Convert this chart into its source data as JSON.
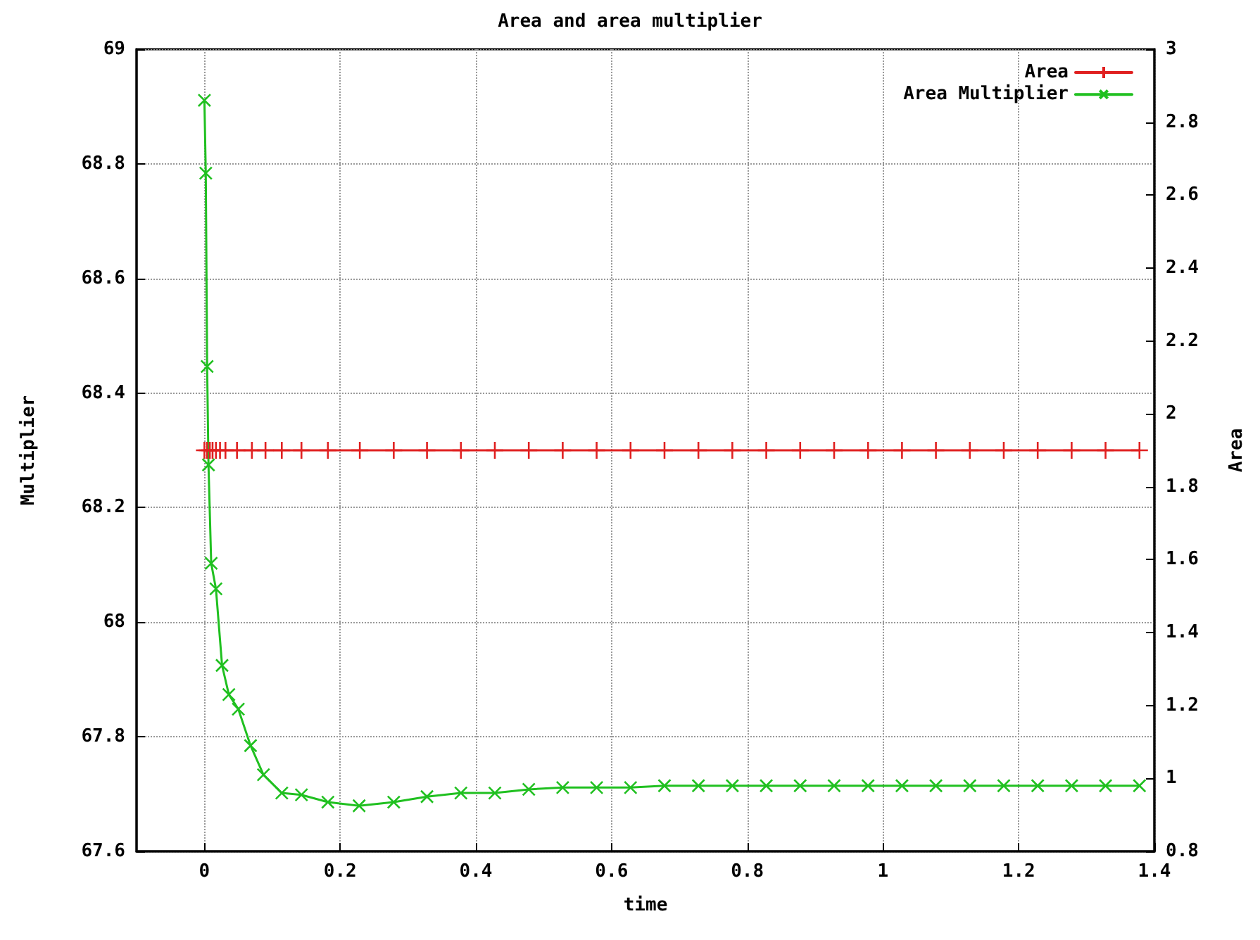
{
  "chart_data": {
    "type": "line",
    "title": "Area and area multiplier",
    "xlabel": "time",
    "ylabel": "Multiplier",
    "y2label": "Area",
    "xlim": [
      -0.1,
      1.4
    ],
    "xticks": [
      0,
      0.2,
      0.4,
      0.6,
      0.8,
      1,
      1.2,
      1.4
    ],
    "ylim": [
      67.6,
      69
    ],
    "yticks": [
      67.6,
      67.8,
      68,
      68.2,
      68.4,
      68.6,
      68.8,
      69
    ],
    "y2lim": [
      0.8,
      3
    ],
    "y2ticks": [
      0.8,
      1,
      1.2,
      1.4,
      1.6,
      1.8,
      2,
      2.2,
      2.4,
      2.6,
      2.8,
      3
    ],
    "grid": true,
    "legend": "top right",
    "marker": "cross",
    "line_style": "solid",
    "series": [
      {
        "name": "Area",
        "color": "#e02020",
        "axis": "y",
        "x": [
          0,
          0.004,
          0.008,
          0.012,
          0.017,
          0.023,
          0.031,
          0.048,
          0.07,
          0.09,
          0.114,
          0.143,
          0.182,
          0.229,
          0.279,
          0.328,
          0.378,
          0.428,
          0.478,
          0.528,
          0.578,
          0.628,
          0.678,
          0.728,
          0.778,
          0.828,
          0.878,
          0.928,
          0.978,
          1.028,
          1.078,
          1.128,
          1.178,
          1.228,
          1.278,
          1.328,
          1.378
        ],
        "values": [
          68.3,
          68.3,
          68.3,
          68.3,
          68.3,
          68.3,
          68.3,
          68.3,
          68.3,
          68.3,
          68.3,
          68.3,
          68.3,
          68.3,
          68.3,
          68.3,
          68.3,
          68.3,
          68.3,
          68.3,
          68.3,
          68.3,
          68.3,
          68.3,
          68.3,
          68.3,
          68.3,
          68.3,
          68.3,
          68.3,
          68.3,
          68.3,
          68.3,
          68.3,
          68.3,
          68.3,
          68.3
        ]
      },
      {
        "name": "Area Multiplier",
        "color": "#20c020",
        "axis": "y2",
        "x": [
          0,
          0.002,
          0.004,
          0.006,
          0.01,
          0.017,
          0.026,
          0.036,
          0.05,
          0.068,
          0.087,
          0.114,
          0.143,
          0.182,
          0.228,
          0.279,
          0.328,
          0.378,
          0.428,
          0.478,
          0.528,
          0.578,
          0.628,
          0.678,
          0.728,
          0.778,
          0.828,
          0.878,
          0.928,
          0.978,
          1.028,
          1.078,
          1.128,
          1.178,
          1.228,
          1.278,
          1.328,
          1.378
        ],
        "values": [
          2.86,
          2.66,
          2.13,
          1.86,
          1.59,
          1.52,
          1.31,
          1.23,
          1.19,
          1.09,
          1.01,
          0.96,
          0.955,
          0.935,
          0.925,
          0.935,
          0.95,
          0.96,
          0.96,
          0.97,
          0.975,
          0.975,
          0.975,
          0.98,
          0.98,
          0.98,
          0.98,
          0.98,
          0.98,
          0.98,
          0.98,
          0.98,
          0.98,
          0.98,
          0.98,
          0.98,
          0.98,
          0.98
        ]
      }
    ]
  }
}
